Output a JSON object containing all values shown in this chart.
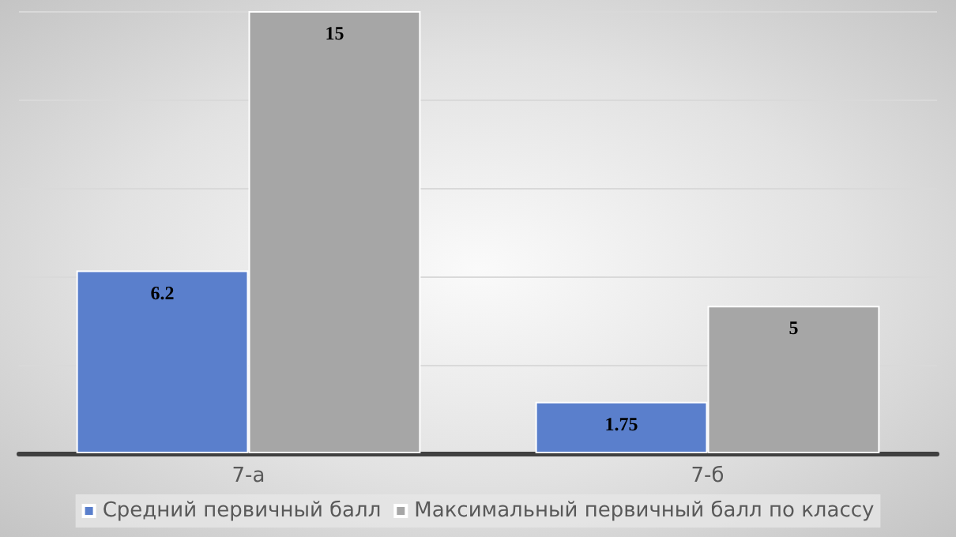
{
  "chart_data": {
    "type": "bar",
    "categories": [
      "7-а",
      "7-б"
    ],
    "series": [
      {
        "name": "Средний первичный балл",
        "color": "#5a7fcc",
        "values": [
          6.2,
          1.75
        ]
      },
      {
        "name": "Максимальный первичный балл по классу",
        "color": "#a6a6a6",
        "values": [
          15,
          5
        ]
      }
    ],
    "tick_labels": "x",
    "grid": "y",
    "legend": "bottom",
    "data_labels": true
  }
}
